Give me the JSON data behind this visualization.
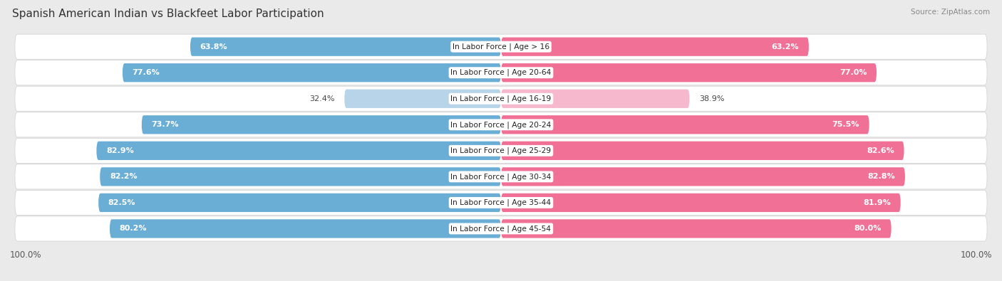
{
  "title": "Spanish American Indian vs Blackfeet Labor Participation",
  "source": "Source: ZipAtlas.com",
  "categories": [
    "In Labor Force | Age > 16",
    "In Labor Force | Age 20-64",
    "In Labor Force | Age 16-19",
    "In Labor Force | Age 20-24",
    "In Labor Force | Age 25-29",
    "In Labor Force | Age 30-34",
    "In Labor Force | Age 35-44",
    "In Labor Force | Age 45-54"
  ],
  "spanish_values": [
    63.8,
    77.6,
    32.4,
    73.7,
    82.9,
    82.2,
    82.5,
    80.2
  ],
  "blackfeet_values": [
    63.2,
    77.0,
    38.9,
    75.5,
    82.6,
    82.8,
    81.9,
    80.0
  ],
  "spanish_color": "#6aaed6",
  "blackfeet_color": "#f07096",
  "spanish_light_color": "#b8d4e8",
  "blackfeet_light_color": "#f5b8cc",
  "bg_color": "#eaeaea",
  "row_bg_color": "#f5f5f5",
  "row_bg_alt": "#e8e8e8",
  "max_value": 100.0,
  "bar_height": 0.72,
  "title_fontsize": 11,
  "label_fontsize": 8,
  "tick_fontsize": 8.5,
  "legend_fontsize": 8.5
}
